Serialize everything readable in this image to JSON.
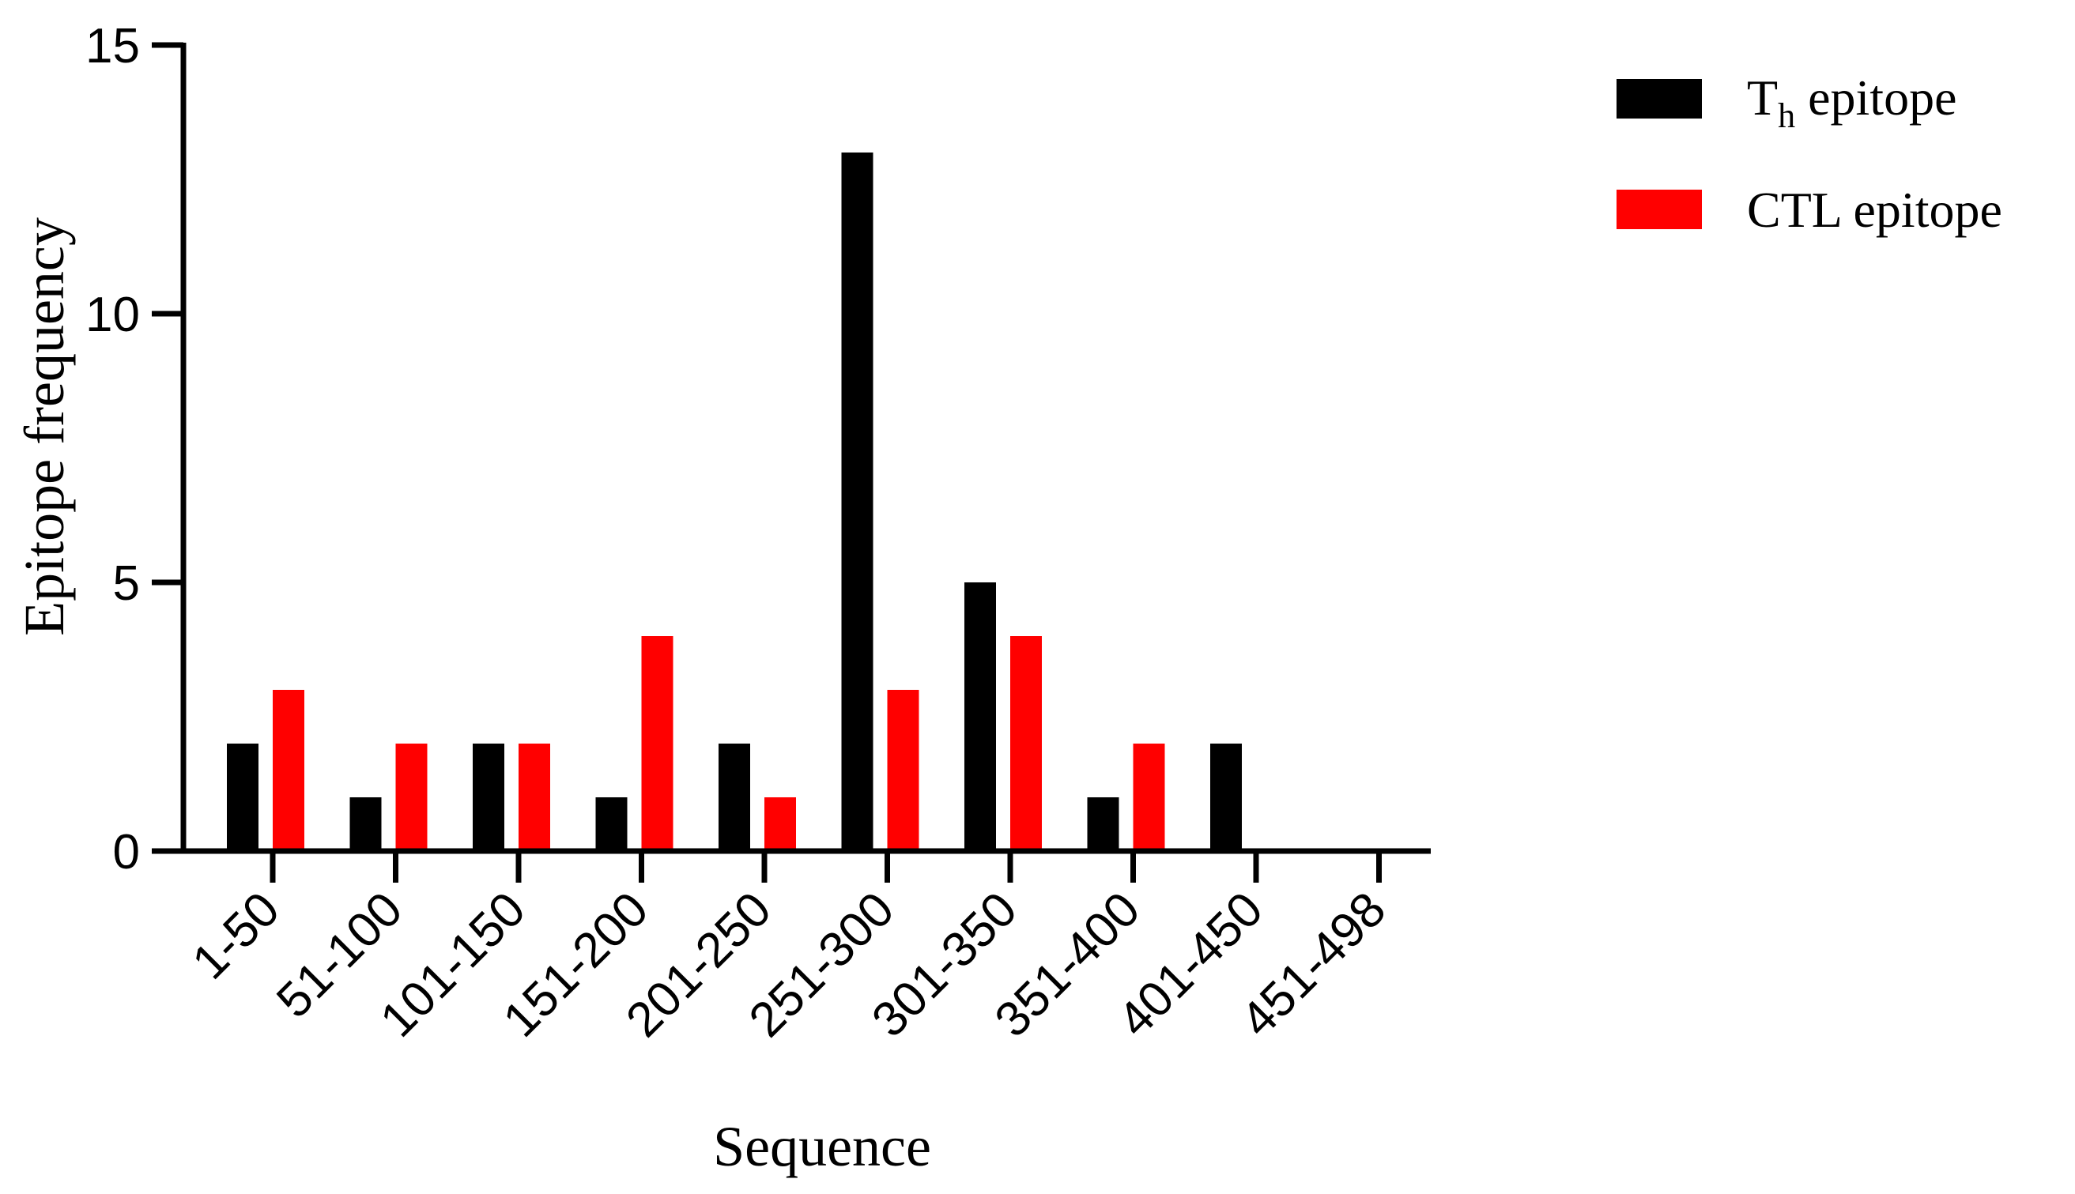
{
  "chart_data": {
    "type": "bar",
    "categories": [
      "1-50",
      "51-100",
      "101-150",
      "151-200",
      "201-250",
      "251-300",
      "301-350",
      "351-400",
      "401-450",
      "451-498"
    ],
    "series": [
      {
        "name": "T",
        "name_subscript": "h",
        "name_suffix": " epitope",
        "color": "#000000",
        "values": [
          2,
          1,
          2,
          1,
          2,
          13,
          5,
          1,
          2,
          0
        ]
      },
      {
        "name": "CTL epitope",
        "color": "#ff0000",
        "values": [
          3,
          2,
          2,
          4,
          1,
          3,
          4,
          2,
          0,
          0
        ]
      }
    ],
    "xlabel": "Sequence",
    "ylabel": "Epitope frequency",
    "ylim": [
      0,
      15
    ],
    "yticks": [
      "0",
      "5",
      "10",
      "15"
    ],
    "legend_position": "top-right",
    "grid": false
  }
}
